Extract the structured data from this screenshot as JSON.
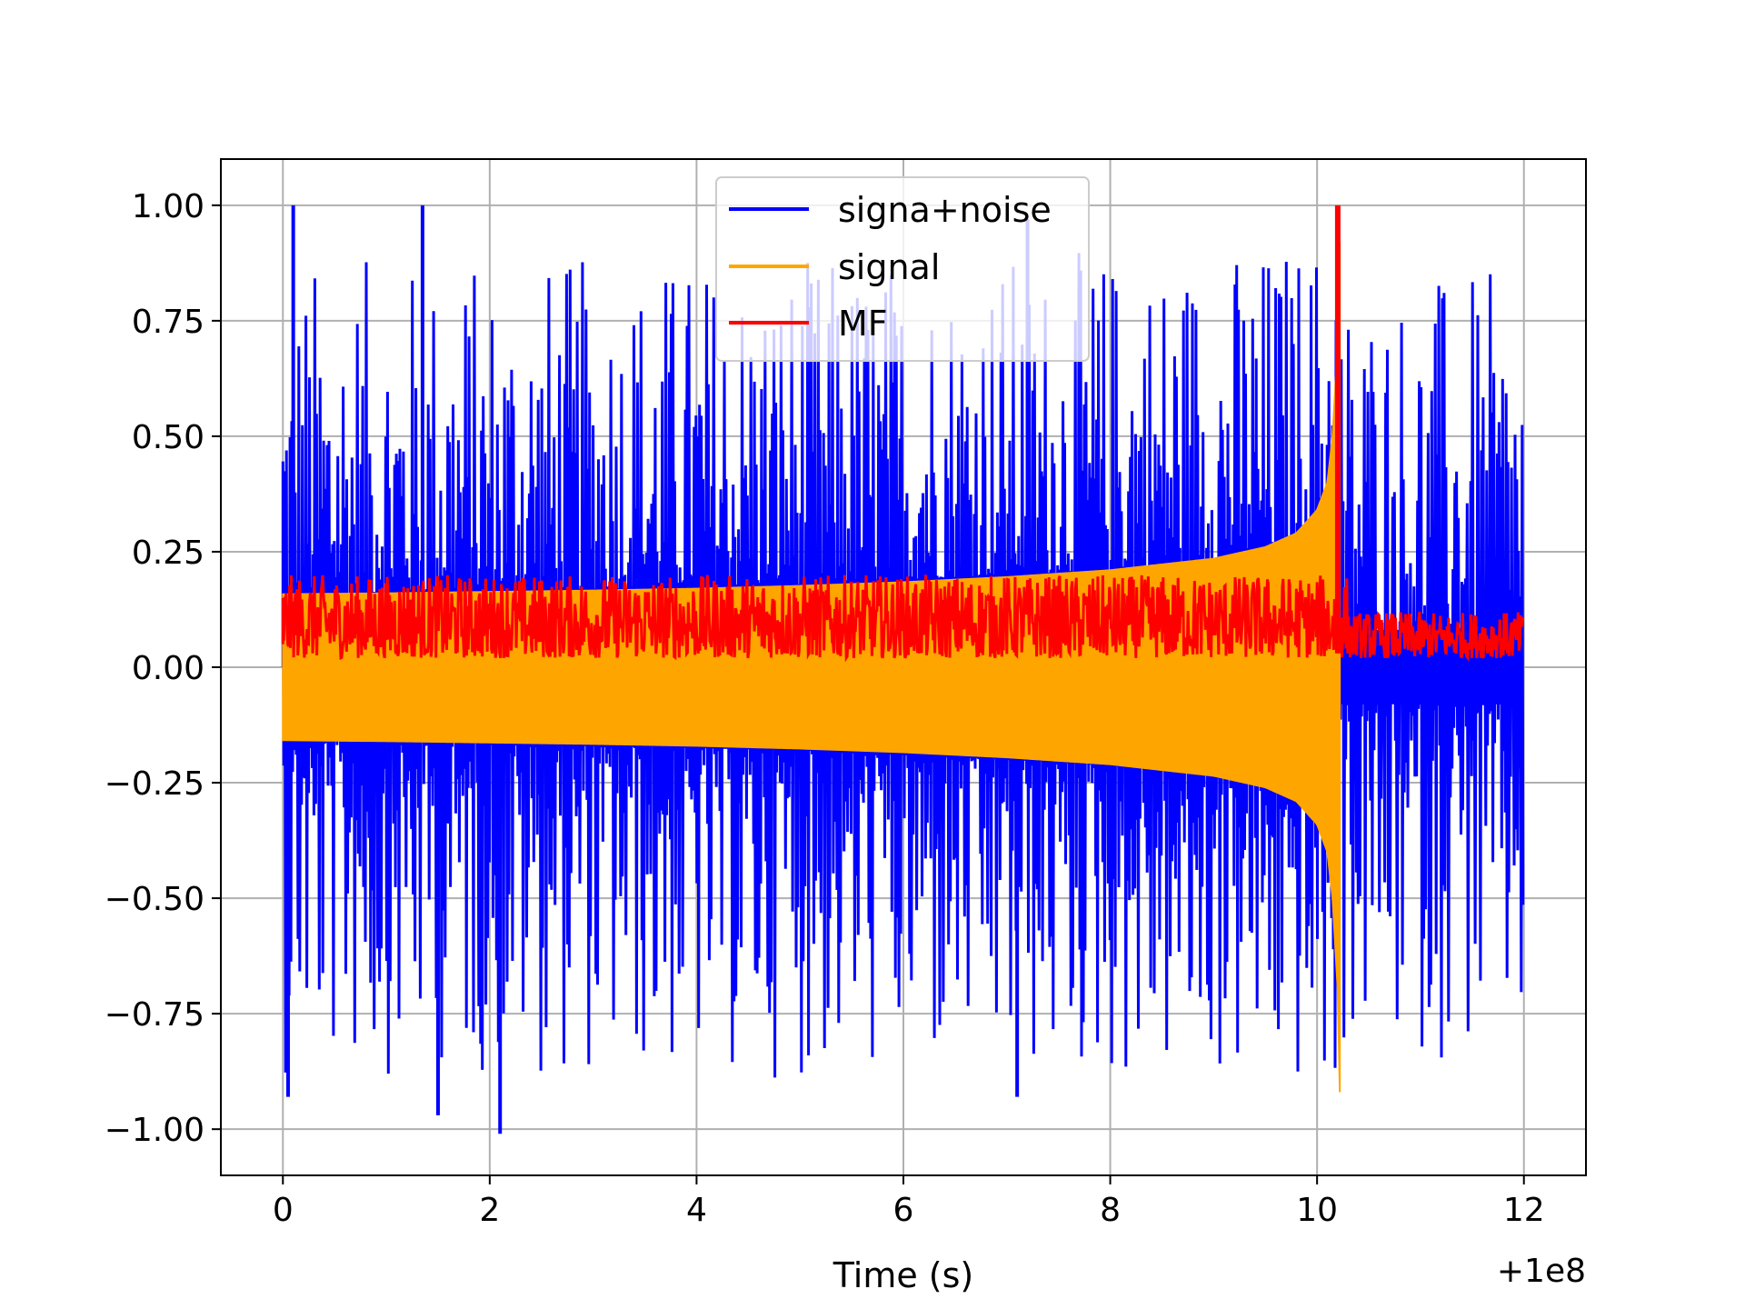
{
  "chart_data": {
    "type": "line",
    "title": "",
    "xlabel": "Time (s)",
    "ylabel": "",
    "x_offset_label": "+1e8",
    "xlim": [
      -0.6,
      12.6
    ],
    "ylim": [
      -1.1,
      1.1
    ],
    "xticks": [
      0,
      2,
      4,
      6,
      8,
      10,
      12
    ],
    "xtick_labels": [
      "0",
      "2",
      "4",
      "6",
      "8",
      "10",
      "12"
    ],
    "yticks": [
      1.0,
      0.75,
      0.5,
      0.25,
      0.0,
      -0.25,
      -0.5,
      -0.75,
      -1.0
    ],
    "ytick_labels": [
      "1.00",
      "0.75",
      "0.50",
      "0.25",
      "0.00",
      "−0.25",
      "−0.50",
      "−0.75",
      "−1.00"
    ],
    "grid": true,
    "legend_position": "top-center",
    "series": [
      {
        "name": "signa+noise",
        "color": "#0000ff",
        "x_range": [
          0,
          12
        ],
        "upper_envelope_x": [
          0,
          1,
          2,
          3,
          4,
          5,
          6,
          7,
          8,
          9,
          9.5,
          10,
          10.2,
          10.22,
          12
        ],
        "upper_envelope_y": [
          0.16,
          0.16,
          0.165,
          0.17,
          0.175,
          0.18,
          0.19,
          0.2,
          0.21,
          0.23,
          0.25,
          0.3,
          0.4,
          0.0,
          0.0
        ],
        "spike_range": [
          0.25,
          1.0
        ],
        "notable_peaks": [
          [
            0.1,
            1.0
          ],
          [
            1.35,
            1.0
          ],
          [
            7.2,
            0.97
          ],
          [
            10.2,
            0.98
          ],
          [
            2.1,
            -1.01
          ],
          [
            0.05,
            -0.93
          ],
          [
            1.5,
            -0.97
          ],
          [
            7.1,
            -0.93
          ]
        ]
      },
      {
        "name": "signal",
        "color": "#ffa500",
        "x_range": [
          0,
          10.22
        ],
        "envelope_x": [
          0,
          1,
          2,
          3,
          4,
          5,
          6,
          7,
          8,
          9,
          9.5,
          9.8,
          10.0,
          10.1,
          10.15,
          10.2,
          10.22
        ],
        "envelope_y": [
          0.158,
          0.16,
          0.163,
          0.166,
          0.17,
          0.176,
          0.184,
          0.195,
          0.21,
          0.235,
          0.26,
          0.29,
          0.34,
          0.4,
          0.5,
          0.7,
          0.92
        ]
      },
      {
        "name": "MF",
        "color": "#ff0000",
        "x_range": [
          0,
          12
        ],
        "baseline_range": [
          0.0,
          0.2
        ],
        "peak": [
          10.2,
          1.0
        ]
      }
    ]
  }
}
